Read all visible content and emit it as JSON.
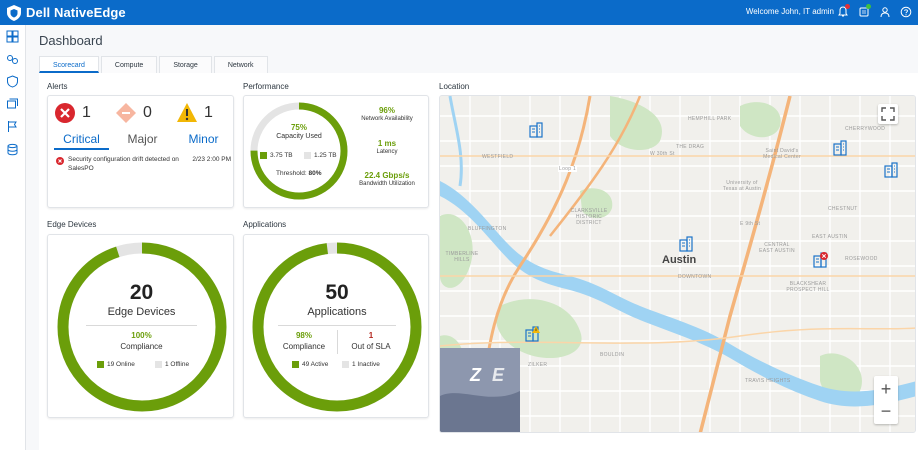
{
  "app": {
    "brand": "Dell NativeEdge",
    "welcome": "Welcome John, IT admin"
  },
  "topIcons": [
    "bell-icon",
    "tasks-icon",
    "user-icon",
    "help-icon"
  ],
  "railIcons": [
    "dashboard-icon",
    "devices-icon",
    "security-icon",
    "applications-icon",
    "flag-icon",
    "storage-icon"
  ],
  "page": {
    "title": "Dashboard"
  },
  "tabs": [
    {
      "label": "Scorecard",
      "active": true
    },
    {
      "label": "Compute",
      "active": false
    },
    {
      "label": "Storage",
      "active": false
    },
    {
      "label": "Network",
      "active": false
    }
  ],
  "alerts": {
    "title": "Alerts",
    "critical": {
      "count": "1",
      "label": "Critical",
      "color": "#d9272e"
    },
    "major": {
      "count": "0",
      "label": "Major",
      "color": "#f7b6a0"
    },
    "minor": {
      "count": "1",
      "label": "Minor",
      "color": "#f2b705"
    },
    "item": {
      "text": "Security configuration drift detected on SalesPO",
      "time": "2/23 2:00 PM"
    }
  },
  "performance": {
    "title": "Performance",
    "capacity_pct": "75%",
    "capacity_label": "Capacity Used",
    "capacity_fraction": 0.75,
    "used": "3.75 TB",
    "free": "1.25 TB",
    "threshold_label": "Threshold:",
    "threshold_value": "80%",
    "network_value": "96%",
    "network_label": "Network Availability",
    "latency_value": "1 ms",
    "latency_label": "Latency",
    "bandwidth_value": "22.4 Gbps/s",
    "bandwidth_label": "Bandwidth Utilization"
  },
  "edge": {
    "title": "Edge Devices",
    "count": "20",
    "label": "Edge Devices",
    "compliance_value": "100%",
    "compliance_label": "Compliance",
    "online": "19 Online",
    "offline": "1 Offline",
    "online_fraction": 0.95
  },
  "apps": {
    "title": "Applications",
    "count": "50",
    "label": "Applications",
    "compliance_value": "98%",
    "compliance_label": "Compliance",
    "sla_value": "1",
    "sla_label": "Out of SLA",
    "active": "49 Active",
    "inactive": "1 Inactive",
    "active_fraction": 0.98
  },
  "location": {
    "title": "Location",
    "city": "Austin",
    "labels": {
      "westfield": "WESTFIELD",
      "the_drag": "THE DRAG",
      "w_30th": "W 30th St",
      "ut": "University of Texas at Austin",
      "medical": "Saint David's Medical Center",
      "hemphill": "HEMPHILL PARK",
      "bluffington": "BLUFFINGTON",
      "clarksville": "CLARKSVILLE HISTORIC DISTRICT",
      "e_9th": "E 9th St",
      "central_east": "CENTRAL EAST AUSTIN",
      "east_austin": "EAST AUSTIN",
      "downtown": "DOWNTOWN",
      "zilker": "ZILKER",
      "bouldin": "BOULDIN",
      "travis_heights": "TRAVIS HEIGHTS",
      "blackshear": "BLACKSHEAR PROSPECT HILL",
      "cherrywood": "CHERRYWOOD",
      "chestnut": "CHESTNUT",
      "rosewood": "ROSEWOOD",
      "timberline": "TIMBERLINE HILLS",
      "loop": "Loop 1"
    },
    "zoom_in": "+",
    "zoom_out": "−"
  },
  "colors": {
    "primary": "#0b6bc9",
    "green": "#6b9e0a",
    "ring_track": "#e4e4e4",
    "critical": "#d9272e"
  }
}
